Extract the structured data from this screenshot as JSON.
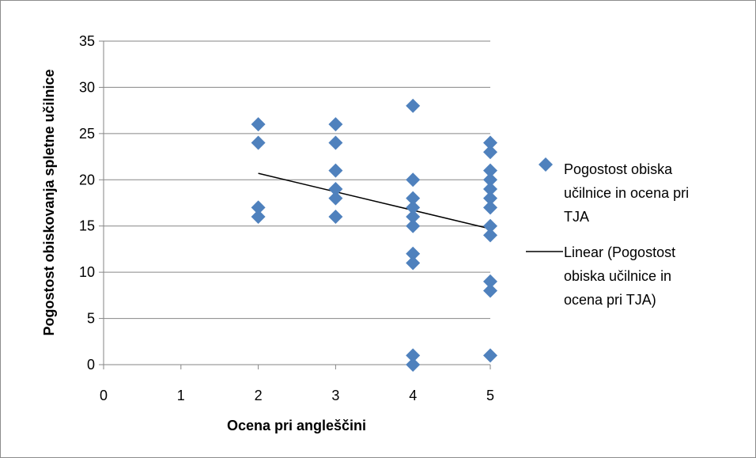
{
  "chart_data": {
    "type": "scatter",
    "xlabel": "Ocena pri angleščini",
    "ylabel": "Pogostost obiskovanja  spletne učilnice",
    "xlim": [
      0,
      5
    ],
    "ylim": [
      0,
      35
    ],
    "x_ticks": [
      "0",
      "1",
      "2",
      "3",
      "4",
      "5"
    ],
    "y_ticks": [
      "0",
      "5",
      "10",
      "15",
      "20",
      "25",
      "30",
      "35"
    ],
    "grid": "horizontal",
    "legend_position": "right",
    "series": [
      {
        "name_lines": [
          "Pogostost obiska",
          "učilnice in ocena pri",
          "TJA"
        ],
        "marker": "diamond",
        "color": "#4f81bd",
        "points": [
          [
            2,
            26
          ],
          [
            2,
            24
          ],
          [
            2,
            17
          ],
          [
            2,
            16
          ],
          [
            3,
            26
          ],
          [
            3,
            24
          ],
          [
            3,
            21
          ],
          [
            3,
            19
          ],
          [
            3,
            18
          ],
          [
            3,
            16
          ],
          [
            4,
            28
          ],
          [
            4,
            20
          ],
          [
            4,
            18
          ],
          [
            4,
            17
          ],
          [
            4,
            16
          ],
          [
            4,
            15
          ],
          [
            4,
            12
          ],
          [
            4,
            11
          ],
          [
            4,
            1
          ],
          [
            4,
            0
          ],
          [
            5,
            24
          ],
          [
            5,
            23
          ],
          [
            5,
            21
          ],
          [
            5,
            20
          ],
          [
            5,
            19
          ],
          [
            5,
            18
          ],
          [
            5,
            17
          ],
          [
            5,
            15
          ],
          [
            5,
            14
          ],
          [
            5,
            9
          ],
          [
            5,
            8
          ],
          [
            5,
            1
          ]
        ]
      }
    ],
    "trendline": {
      "name_lines": [
        "Linear (Pogostost",
        "obiska učilnice in",
        "ocena pri TJA)"
      ],
      "type": "linear",
      "color": "#000000",
      "x": [
        2,
        5
      ],
      "y": [
        20.7,
        14.7
      ]
    }
  }
}
